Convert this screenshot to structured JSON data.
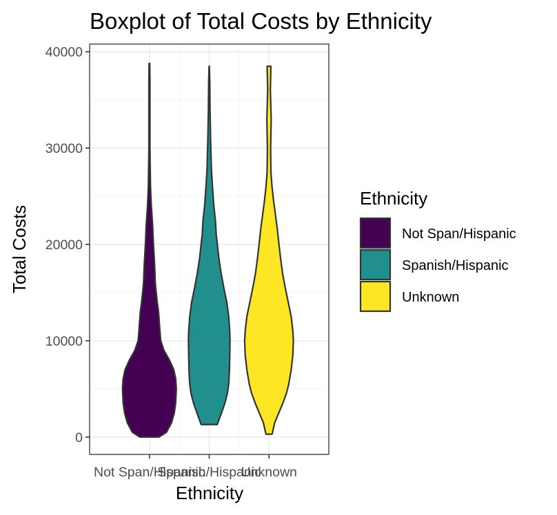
{
  "chart_data": {
    "type": "violin",
    "title": "Boxplot of Total Costs by Ethnicity",
    "xlabel": "Ethnicity",
    "ylabel": "Total Costs",
    "ylim": [
      -1800,
      40800
    ],
    "y_ticks": [
      0,
      10000,
      20000,
      30000,
      40000
    ],
    "y_tick_labels": [
      "0",
      "10000",
      "20000",
      "30000",
      "40000"
    ],
    "grid": true,
    "categories": [
      "Not Span/Hispanic",
      "Spanish/Hispanic",
      "Unknown"
    ],
    "colors": [
      "#440154",
      "#21908C",
      "#FDE725"
    ],
    "series": [
      {
        "category": "Not Span/Hispanic",
        "min": 0,
        "max": 38800,
        "density_profile": [
          {
            "y": 0,
            "w": 0.16
          },
          {
            "y": 500,
            "w": 0.285
          },
          {
            "y": 1500,
            "w": 0.371
          },
          {
            "y": 2500,
            "w": 0.416
          },
          {
            "y": 3500,
            "w": 0.439
          },
          {
            "y": 5000,
            "w": 0.45
          },
          {
            "y": 6000,
            "w": 0.441
          },
          {
            "y": 7000,
            "w": 0.407
          },
          {
            "y": 8000,
            "w": 0.335
          },
          {
            "y": 9000,
            "w": 0.244
          },
          {
            "y": 10000,
            "w": 0.19
          },
          {
            "y": 11000,
            "w": 0.176
          },
          {
            "y": 13000,
            "w": 0.153
          },
          {
            "y": 14000,
            "w": 0.131
          },
          {
            "y": 15000,
            "w": 0.113
          },
          {
            "y": 16000,
            "w": 0.099
          },
          {
            "y": 18000,
            "w": 0.086
          },
          {
            "y": 20000,
            "w": 0.068
          },
          {
            "y": 22000,
            "w": 0.054
          },
          {
            "y": 24000,
            "w": 0.032
          },
          {
            "y": 26000,
            "w": 0.018
          },
          {
            "y": 30000,
            "w": 0.009
          },
          {
            "y": 34000,
            "w": 0.009
          },
          {
            "y": 37000,
            "w": 0.009
          },
          {
            "y": 38800,
            "w": 0.005
          }
        ]
      },
      {
        "category": "Spanish/Hispanic",
        "min": 1300,
        "max": 38500,
        "density_profile": [
          {
            "y": 1300,
            "w": 0.135
          },
          {
            "y": 2500,
            "w": 0.205
          },
          {
            "y": 3500,
            "w": 0.262
          },
          {
            "y": 4500,
            "w": 0.303
          },
          {
            "y": 5500,
            "w": 0.326
          },
          {
            "y": 7000,
            "w": 0.339
          },
          {
            "y": 8500,
            "w": 0.344
          },
          {
            "y": 10000,
            "w": 0.348
          },
          {
            "y": 11000,
            "w": 0.344
          },
          {
            "y": 12500,
            "w": 0.326
          },
          {
            "y": 14000,
            "w": 0.294
          },
          {
            "y": 15500,
            "w": 0.244
          },
          {
            "y": 17000,
            "w": 0.199
          },
          {
            "y": 18500,
            "w": 0.163
          },
          {
            "y": 20000,
            "w": 0.136
          },
          {
            "y": 21000,
            "w": 0.118
          },
          {
            "y": 22500,
            "w": 0.104
          },
          {
            "y": 24000,
            "w": 0.077
          },
          {
            "y": 26000,
            "w": 0.054
          },
          {
            "y": 28000,
            "w": 0.036
          },
          {
            "y": 31000,
            "w": 0.023
          },
          {
            "y": 34000,
            "w": 0.014
          },
          {
            "y": 37000,
            "w": 0.009
          },
          {
            "y": 38500,
            "w": 0.002
          }
        ]
      },
      {
        "category": "Unknown",
        "min": 300,
        "max": 38500,
        "density_profile": [
          {
            "y": 300,
            "w": 0.051
          },
          {
            "y": 1500,
            "w": 0.095
          },
          {
            "y": 2500,
            "w": 0.163
          },
          {
            "y": 3500,
            "w": 0.23
          },
          {
            "y": 4500,
            "w": 0.289
          },
          {
            "y": 5500,
            "w": 0.33
          },
          {
            "y": 7000,
            "w": 0.371
          },
          {
            "y": 8500,
            "w": 0.398
          },
          {
            "y": 10000,
            "w": 0.407
          },
          {
            "y": 11000,
            "w": 0.398
          },
          {
            "y": 12500,
            "w": 0.371
          },
          {
            "y": 14000,
            "w": 0.321
          },
          {
            "y": 15500,
            "w": 0.271
          },
          {
            "y": 17000,
            "w": 0.226
          },
          {
            "y": 18500,
            "w": 0.194
          },
          {
            "y": 20000,
            "w": 0.167
          },
          {
            "y": 21500,
            "w": 0.14
          },
          {
            "y": 23000,
            "w": 0.109
          },
          {
            "y": 24500,
            "w": 0.077
          },
          {
            "y": 26000,
            "w": 0.05
          },
          {
            "y": 27500,
            "w": 0.032
          },
          {
            "y": 30000,
            "w": 0.027
          },
          {
            "y": 33000,
            "w": 0.036
          },
          {
            "y": 36000,
            "w": 0.023
          },
          {
            "y": 38500,
            "w": 0.032
          }
        ]
      }
    ],
    "legend": {
      "title": "Ethnicity",
      "position": "right",
      "entries": [
        {
          "label": "Not Span/Hispanic",
          "color": "#440154"
        },
        {
          "label": "Spanish/Hispanic",
          "color": "#21908C"
        },
        {
          "label": "Unknown",
          "color": "#FDE725"
        }
      ]
    }
  }
}
